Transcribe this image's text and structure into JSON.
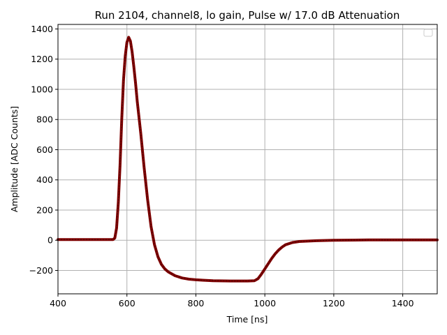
{
  "chart_data": {
    "type": "line",
    "title": "Run 2104, channel8, lo gain, Pulse w/ 17.0 dB Attenuation",
    "xlabel": "Time [ns]",
    "ylabel": "Amplitude [ADC Counts]",
    "xlim": [
      400,
      1500
    ],
    "ylim": [
      -355,
      1430
    ],
    "xticks": [
      400,
      600,
      800,
      1000,
      1200,
      1400
    ],
    "yticks": [
      -200,
      0,
      200,
      400,
      600,
      800,
      1000,
      1200,
      1400
    ],
    "grid": true,
    "legend": "top-right, empty",
    "colors": {
      "line": "#800000",
      "grid": "#b0b0b0"
    },
    "series": [
      {
        "x": [
          400,
          500,
          560,
          565,
          570,
          575,
          580,
          585,
          590,
          595,
          600,
          605,
          610,
          615,
          620,
          625,
          630,
          640,
          650,
          660,
          670,
          680,
          690,
          700,
          710,
          720,
          740,
          760,
          780,
          800,
          820,
          850,
          900,
          950,
          970,
          980,
          990,
          1000,
          1010,
          1020,
          1030,
          1040,
          1050,
          1060,
          1080,
          1100,
          1150,
          1200,
          1300,
          1400,
          1500
        ],
        "y": [
          5,
          5,
          5,
          15,
          80,
          250,
          500,
          800,
          1060,
          1220,
          1310,
          1345,
          1320,
          1250,
          1150,
          1040,
          920,
          710,
          480,
          270,
          90,
          -30,
          -110,
          -160,
          -190,
          -210,
          -235,
          -250,
          -258,
          -262,
          -265,
          -268,
          -270,
          -270,
          -268,
          -255,
          -225,
          -190,
          -155,
          -120,
          -90,
          -65,
          -45,
          -30,
          -15,
          -8,
          -3,
          0,
          2,
          2,
          2
        ]
      }
    ]
  }
}
